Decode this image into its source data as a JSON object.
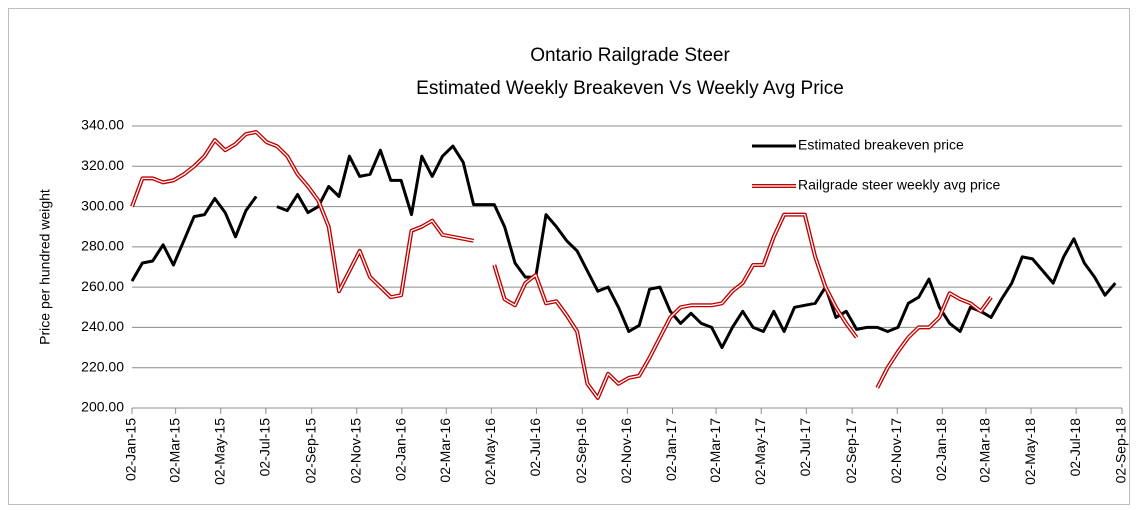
{
  "chart_data": {
    "type": "line",
    "title": "Ontario Railgrade Steer",
    "subtitle": "Estimated Weekly Breakeven Vs Weekly Avg Price",
    "y_label": "Price per hundred weight",
    "x": [
      "2015-01-02",
      "2015-01-16",
      "2015-01-30",
      "2015-02-13",
      "2015-02-27",
      "2015-03-13",
      "2015-03-27",
      "2015-04-10",
      "2015-04-24",
      "2015-05-08",
      "2015-05-22",
      "2015-06-05",
      "2015-06-19",
      "2015-07-03",
      "2015-07-17",
      "2015-07-31",
      "2015-08-14",
      "2015-08-28",
      "2015-09-11",
      "2015-09-25",
      "2015-10-09",
      "2015-10-23",
      "2015-11-06",
      "2015-11-20",
      "2015-12-04",
      "2015-12-18",
      "2016-01-01",
      "2016-01-15",
      "2016-01-29",
      "2016-02-12",
      "2016-02-26",
      "2016-03-11",
      "2016-03-25",
      "2016-04-08",
      "2016-04-22",
      "2016-05-06",
      "2016-05-20",
      "2016-06-03",
      "2016-06-17",
      "2016-07-01",
      "2016-07-15",
      "2016-07-29",
      "2016-08-12",
      "2016-08-26",
      "2016-09-09",
      "2016-09-23",
      "2016-10-07",
      "2016-10-21",
      "2016-11-04",
      "2016-11-18",
      "2016-12-02",
      "2016-12-16",
      "2016-12-30",
      "2017-01-13",
      "2017-01-27",
      "2017-02-10",
      "2017-02-24",
      "2017-03-10",
      "2017-03-24",
      "2017-04-07",
      "2017-04-21",
      "2017-05-05",
      "2017-05-19",
      "2017-06-02",
      "2017-06-16",
      "2017-06-30",
      "2017-07-14",
      "2017-07-28",
      "2017-08-11",
      "2017-08-25",
      "2017-09-08",
      "2017-09-22",
      "2017-10-06",
      "2017-10-20",
      "2017-11-03",
      "2017-11-17",
      "2017-12-01",
      "2017-12-15",
      "2017-12-29",
      "2018-01-12",
      "2018-01-26",
      "2018-02-09",
      "2018-02-23",
      "2018-03-09",
      "2018-03-23",
      "2018-04-06",
      "2018-04-20",
      "2018-05-04",
      "2018-05-18",
      "2018-06-01",
      "2018-06-15",
      "2018-06-29",
      "2018-07-13",
      "2018-07-27",
      "2018-08-10",
      "2018-08-24"
    ],
    "series": [
      {
        "name": "Estimated breakeven price",
        "color": "#000000",
        "values": [
          263,
          272,
          273,
          281,
          271,
          283,
          295,
          296,
          304,
          297,
          285,
          298,
          305,
          null,
          300,
          298,
          306,
          297,
          300,
          310,
          305,
          325,
          315,
          316,
          328,
          313,
          313,
          296,
          325,
          315,
          325,
          330,
          322,
          301,
          301,
          301,
          290,
          272,
          265,
          265,
          296,
          290,
          283,
          278,
          268,
          258,
          260,
          250,
          238,
          241,
          259,
          260,
          248,
          242,
          247,
          242,
          240,
          230,
          240,
          248,
          240,
          238,
          248,
          238,
          250,
          251,
          252,
          260,
          245,
          248,
          239,
          240,
          240,
          238,
          240,
          252,
          255,
          264,
          250,
          242,
          238,
          250,
          248,
          245,
          254,
          262,
          275,
          274,
          268,
          262,
          275,
          284,
          272,
          265,
          256,
          262
        ]
      },
      {
        "name": "Railgrade steer weekly avg price",
        "color": "#c00000",
        "values": [
          300,
          314,
          314,
          312,
          313,
          316,
          320,
          325,
          333,
          328,
          331,
          336,
          337,
          332,
          330,
          325,
          316,
          310,
          303,
          290,
          258,
          268,
          278,
          265,
          260,
          255,
          256,
          288,
          290,
          293,
          286,
          285,
          284,
          283,
          null,
          271,
          254,
          251,
          262,
          266,
          252,
          253,
          246,
          238,
          212,
          205,
          217,
          212,
          215,
          216,
          225,
          235,
          245,
          250,
          251,
          251,
          251,
          252,
          258,
          262,
          271,
          271,
          285,
          296,
          296,
          296,
          275,
          260,
          250,
          242,
          235,
          null,
          210,
          220,
          228,
          235,
          240,
          240,
          245,
          257,
          254,
          252,
          248,
          255,
          null,
          null,
          null,
          null,
          null,
          null,
          null,
          null,
          null,
          null,
          null,
          null
        ]
      }
    ],
    "xlim": [
      "2015-01-02",
      "2018-09-02"
    ],
    "xticks": [
      {
        "value": "2015-01-02",
        "label": "02-Jan-15"
      },
      {
        "value": "2015-03-02",
        "label": "02-Mar-15"
      },
      {
        "value": "2015-05-02",
        "label": "02-May-15"
      },
      {
        "value": "2015-07-02",
        "label": "02-Jul-15"
      },
      {
        "value": "2015-09-02",
        "label": "02-Sep-15"
      },
      {
        "value": "2015-11-02",
        "label": "02-Nov-15"
      },
      {
        "value": "2016-01-02",
        "label": "02-Jan-16"
      },
      {
        "value": "2016-03-02",
        "label": "02-Mar-16"
      },
      {
        "value": "2016-05-02",
        "label": "02-May-16"
      },
      {
        "value": "2016-07-02",
        "label": "02-Jul-16"
      },
      {
        "value": "2016-09-02",
        "label": "02-Sep-16"
      },
      {
        "value": "2016-11-02",
        "label": "02-Nov-16"
      },
      {
        "value": "2017-01-02",
        "label": "02-Jan-17"
      },
      {
        "value": "2017-03-02",
        "label": "02-Mar-17"
      },
      {
        "value": "2017-05-02",
        "label": "02-May-17"
      },
      {
        "value": "2017-07-02",
        "label": "02-Jul-17"
      },
      {
        "value": "2017-09-02",
        "label": "02-Sep-17"
      },
      {
        "value": "2017-11-02",
        "label": "02-Nov-17"
      },
      {
        "value": "2018-01-02",
        "label": "02-Jan-18"
      },
      {
        "value": "2018-03-02",
        "label": "02-Mar-18"
      },
      {
        "value": "2018-05-02",
        "label": "02-May-18"
      },
      {
        "value": "2018-07-02",
        "label": "02-Jul-18"
      },
      {
        "value": "2018-09-02",
        "label": "02-Sep-18"
      }
    ],
    "ylim": [
      200,
      340
    ],
    "yticks": [
      {
        "value": 200,
        "label": "200.00"
      },
      {
        "value": 220,
        "label": "220.00"
      },
      {
        "value": 240,
        "label": "240.00"
      },
      {
        "value": 260,
        "label": "260.00"
      },
      {
        "value": 280,
        "label": "280.00"
      },
      {
        "value": 300,
        "label": "300.00"
      },
      {
        "value": 320,
        "label": "320.00"
      },
      {
        "value": 340,
        "label": "340.00"
      }
    ],
    "grid": true,
    "legend": "upper right"
  }
}
